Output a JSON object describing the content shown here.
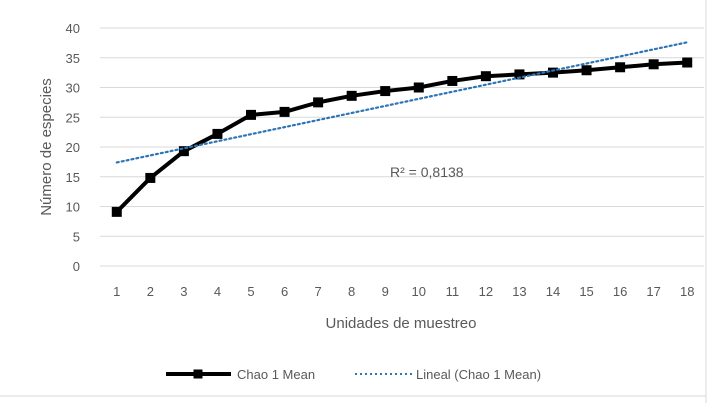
{
  "chart_data": {
    "type": "line",
    "title": "",
    "xlabel": "Unidades de muestreo",
    "ylabel": "Número de especies",
    "x": [
      1,
      2,
      3,
      4,
      5,
      6,
      7,
      8,
      9,
      10,
      11,
      12,
      13,
      14,
      15,
      16,
      17,
      18
    ],
    "ylim": [
      0,
      40
    ],
    "yticks": [
      0,
      5,
      10,
      15,
      20,
      25,
      30,
      35,
      40
    ],
    "grid": true,
    "legend_position": "bottom",
    "series": [
      {
        "name": "Chao 1 Mean",
        "values": [
          9.1,
          14.8,
          19.3,
          22.2,
          25.4,
          25.9,
          27.5,
          28.6,
          29.4,
          30.0,
          31.1,
          31.9,
          32.2,
          32.5,
          32.9,
          33.4,
          33.9,
          34.2
        ],
        "color": "#000000",
        "marker": "square",
        "style": "solid"
      },
      {
        "name": "Lineal (Chao 1 Mean)",
        "trendline": "linear",
        "start": 17.4,
        "end": 37.6,
        "color": "#2E75B6",
        "style": "dotted"
      }
    ],
    "annotation": "R² = 0,8138"
  }
}
